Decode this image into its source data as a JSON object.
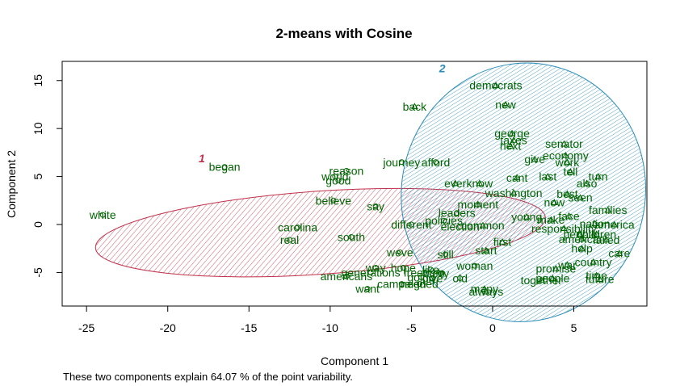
{
  "chart_data": {
    "type": "scatter",
    "title": "2-means with Cosine",
    "xlabel": "Component 1",
    "ylabel": "Component 2",
    "xlim": [
      -26.5,
      9.5
    ],
    "ylim": [
      -8.5,
      17
    ],
    "xticks": [
      -25,
      -20,
      -15,
      -10,
      -5,
      0,
      5
    ],
    "yticks": [
      -5,
      0,
      5,
      10,
      15
    ],
    "grid": false,
    "footnote": "These two components explain 64.07 % of the point variability.",
    "clusters": [
      {
        "label": "1",
        "color": "#C0314A",
        "center": [
          -10.6,
          -0.85
        ],
        "rx": 13.88,
        "ry": 4.33,
        "angle_deg": -3.9,
        "label_pos": [
          -17.9,
          6.9
        ]
      },
      {
        "label": "2",
        "color": "#2A8CB8",
        "center": [
          1.9,
          3.35
        ],
        "rx": 7.5,
        "ry": 13.52,
        "angle_deg": 13.27,
        "label_pos": [
          -3.1,
          16.3
        ]
      }
    ],
    "points": [
      {
        "label": "white",
        "x": -24.0,
        "y": 1.0,
        "marker": "circle"
      },
      {
        "label": "began",
        "x": -16.5,
        "y": 6.0,
        "marker": "circle"
      },
      {
        "label": "carolina",
        "x": -12.0,
        "y": -0.3,
        "marker": "circle"
      },
      {
        "label": "real",
        "x": -12.5,
        "y": -1.6,
        "marker": "circle"
      },
      {
        "label": "reason",
        "x": -9.0,
        "y": 5.6,
        "marker": "circle"
      },
      {
        "label": "good",
        "x": -9.5,
        "y": 4.6,
        "marker": "circle"
      },
      {
        "label": "world",
        "x": -9.7,
        "y": 5.0,
        "marker": "circle"
      },
      {
        "label": "believe",
        "x": -9.8,
        "y": 2.5,
        "marker": "circle"
      },
      {
        "label": "say",
        "x": -7.2,
        "y": 1.9,
        "marker": "circle"
      },
      {
        "label": "south",
        "x": -8.7,
        "y": -1.3,
        "marker": "circle"
      },
      {
        "label": "generations",
        "x": -7.5,
        "y": -5.0,
        "marker": "circle"
      },
      {
        "label": "americans",
        "x": -9.0,
        "y": -5.4,
        "marker": "circle"
      },
      {
        "label": "want",
        "x": -7.7,
        "y": -6.7,
        "marker": "circle"
      },
      {
        "label": "way",
        "x": -7.2,
        "y": -4.5,
        "marker": "circle"
      },
      {
        "label": "weve",
        "x": -5.7,
        "y": -2.9,
        "marker": "circle"
      },
      {
        "label": "hope",
        "x": -5.5,
        "y": -4.5,
        "marker": "circle"
      },
      {
        "label": "campaign",
        "x": -5.6,
        "y": -6.2,
        "marker": "circle"
      },
      {
        "label": "needed",
        "x": -4.5,
        "y": -6.2,
        "marker": "circle"
      },
      {
        "label": "freedom",
        "x": -4.2,
        "y": -5.0,
        "marker": "circle"
      },
      {
        "label": "like",
        "x": -3.8,
        "y": -4.7,
        "marker": "circle"
      },
      {
        "label": "city",
        "x": -3.2,
        "y": -5.1,
        "marker": "circle"
      },
      {
        "label": "give",
        "x": -3.7,
        "y": -5.6,
        "marker": "circle"
      },
      {
        "label": "going",
        "x": -4.4,
        "y": -5.5,
        "marker": "circle"
      },
      {
        "label": "woman",
        "x": -1.1,
        "y": -4.3,
        "marker": "circle"
      },
      {
        "label": "still",
        "x": -2.9,
        "y": -3.1,
        "marker": "circle"
      },
      {
        "label": "old",
        "x": -2.0,
        "y": -5.6,
        "marker": "circle"
      },
      {
        "label": "journey",
        "x": -5.6,
        "y": 6.5,
        "marker": "circle"
      },
      {
        "label": "afford",
        "x": -3.5,
        "y": 6.5,
        "marker": "circle"
      },
      {
        "label": "different",
        "x": -5.0,
        "y": 0.0,
        "marker": "circle"
      },
      {
        "label": "policies",
        "x": -3.0,
        "y": 0.4,
        "marker": "circle"
      },
      {
        "label": "leaders",
        "x": -2.2,
        "y": 1.2,
        "marker": "circle"
      },
      {
        "label": "election",
        "x": -2.0,
        "y": -0.2,
        "marker": "circle"
      },
      {
        "label": "moment",
        "x": -0.9,
        "y": 2.1,
        "marker": "triangle"
      },
      {
        "label": "common",
        "x": -0.6,
        "y": -0.1,
        "marker": "triangle"
      },
      {
        "label": "start",
        "x": -0.4,
        "y": -2.7,
        "marker": "triangle"
      },
      {
        "label": "first",
        "x": 0.6,
        "y": -1.8,
        "marker": "triangle"
      },
      {
        "label": "ever",
        "x": -2.3,
        "y": 4.3,
        "marker": "triangle"
      },
      {
        "label": "know",
        "x": -0.8,
        "y": 4.3,
        "marker": "triangle"
      },
      {
        "label": "washington",
        "x": 1.3,
        "y": 3.3,
        "marker": "triangle"
      },
      {
        "label": "back",
        "x": -4.8,
        "y": 12.3,
        "marker": "triangle"
      },
      {
        "label": "democrats",
        "x": 0.2,
        "y": 14.5,
        "marker": "triangle"
      },
      {
        "label": "new",
        "x": 0.8,
        "y": 12.5,
        "marker": "triangle"
      },
      {
        "label": "george",
        "x": 1.2,
        "y": 9.5,
        "marker": "triangle"
      },
      {
        "label": "taxes",
        "x": 1.3,
        "y": 8.8,
        "marker": "triangle"
      },
      {
        "label": "next",
        "x": 1.1,
        "y": 8.2,
        "marker": "triangle"
      },
      {
        "label": "senator",
        "x": 4.4,
        "y": 8.4,
        "marker": "triangle"
      },
      {
        "label": "give",
        "x": 2.6,
        "y": 6.8,
        "marker": "triangle"
      },
      {
        "label": "economy",
        "x": 4.5,
        "y": 7.2,
        "marker": "triangle"
      },
      {
        "label": "work",
        "x": 4.6,
        "y": 6.5,
        "marker": "triangle"
      },
      {
        "label": "tell",
        "x": 4.8,
        "y": 5.5,
        "marker": "triangle"
      },
      {
        "label": "cant",
        "x": 1.5,
        "y": 4.9,
        "marker": "triangle"
      },
      {
        "label": "last",
        "x": 3.4,
        "y": 5.0,
        "marker": "triangle"
      },
      {
        "label": "turn",
        "x": 6.5,
        "y": 5.0,
        "marker": "triangle"
      },
      {
        "label": "also",
        "x": 5.8,
        "y": 4.3,
        "marker": "triangle"
      },
      {
        "label": "best",
        "x": 4.6,
        "y": 3.2,
        "marker": "triangle"
      },
      {
        "label": "seen",
        "x": 5.4,
        "y": 2.8,
        "marker": "triangle"
      },
      {
        "label": "now",
        "x": 3.8,
        "y": 2.3,
        "marker": "triangle"
      },
      {
        "label": "families",
        "x": 7.1,
        "y": 1.5,
        "marker": "triangle"
      },
      {
        "label": "young",
        "x": 2.1,
        "y": 0.8,
        "marker": "triangle"
      },
      {
        "label": "face",
        "x": 4.7,
        "y": 0.9,
        "marker": "triangle"
      },
      {
        "label": "make",
        "x": 3.6,
        "y": 0.5,
        "marker": "triangle"
      },
      {
        "label": "nation",
        "x": 6.3,
        "y": 0.1,
        "marker": "triangle"
      },
      {
        "label": "america",
        "x": 7.5,
        "y": 0.0,
        "marker": "triangle"
      },
      {
        "label": "responsibility",
        "x": 4.4,
        "y": -0.4,
        "marker": "triangle"
      },
      {
        "label": "people",
        "x": 5.4,
        "y": -1.0,
        "marker": "triangle"
      },
      {
        "label": "children",
        "x": 6.4,
        "y": -1.0,
        "marker": "triangle"
      },
      {
        "label": "american",
        "x": 5.5,
        "y": -1.5,
        "marker": "triangle"
      },
      {
        "label": "failed",
        "x": 7.0,
        "y": -1.6,
        "marker": "triangle"
      },
      {
        "label": "help",
        "x": 5.5,
        "y": -2.5,
        "marker": "triangle"
      },
      {
        "label": "care",
        "x": 7.8,
        "y": -3.0,
        "marker": "triangle"
      },
      {
        "label": "country",
        "x": 6.2,
        "y": -3.9,
        "marker": "triangle"
      },
      {
        "label": "war",
        "x": 4.6,
        "y": -4.2,
        "marker": "triangle"
      },
      {
        "label": "promise",
        "x": 3.9,
        "y": -4.6,
        "marker": "triangle"
      },
      {
        "label": "time",
        "x": 6.4,
        "y": -5.3,
        "marker": "triangle"
      },
      {
        "label": "future",
        "x": 6.6,
        "y": -5.7,
        "marker": "triangle"
      },
      {
        "label": "together",
        "x": 3.0,
        "y": -5.8,
        "marker": "triangle"
      },
      {
        "label": "people",
        "x": 3.7,
        "y": -5.6,
        "marker": "triangle"
      },
      {
        "label": "many",
        "x": -0.5,
        "y": -6.7,
        "marker": "triangle"
      },
      {
        "label": "always",
        "x": -0.4,
        "y": -7.0,
        "marker": "triangle"
      }
    ]
  }
}
